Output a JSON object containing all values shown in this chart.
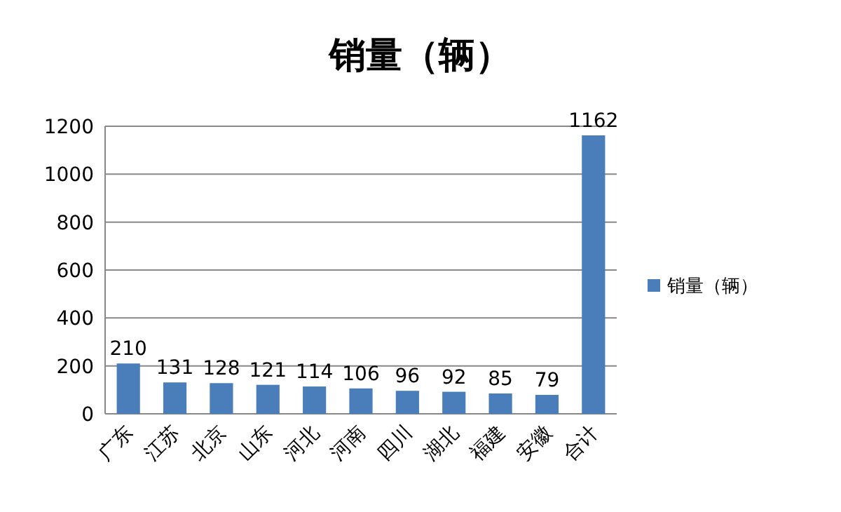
{
  "chart_data": {
    "type": "bar",
    "title": "销量（辆）",
    "categories": [
      "广东",
      "江苏",
      "北京",
      "山东",
      "河北",
      "河南",
      "四川",
      "湖北",
      "福建",
      "安徽",
      "合计"
    ],
    "series": [
      {
        "name": "销量（辆）",
        "color": "#4a7ebb",
        "values": [
          210,
          131,
          128,
          121,
          114,
          106,
          96,
          92,
          85,
          79,
          1162
        ]
      }
    ],
    "ylim": [
      0,
      1200
    ],
    "yticks": [
      0,
      200,
      400,
      600,
      800,
      1000,
      1200
    ],
    "grid": "y",
    "data_labels": true,
    "legend": "right"
  }
}
